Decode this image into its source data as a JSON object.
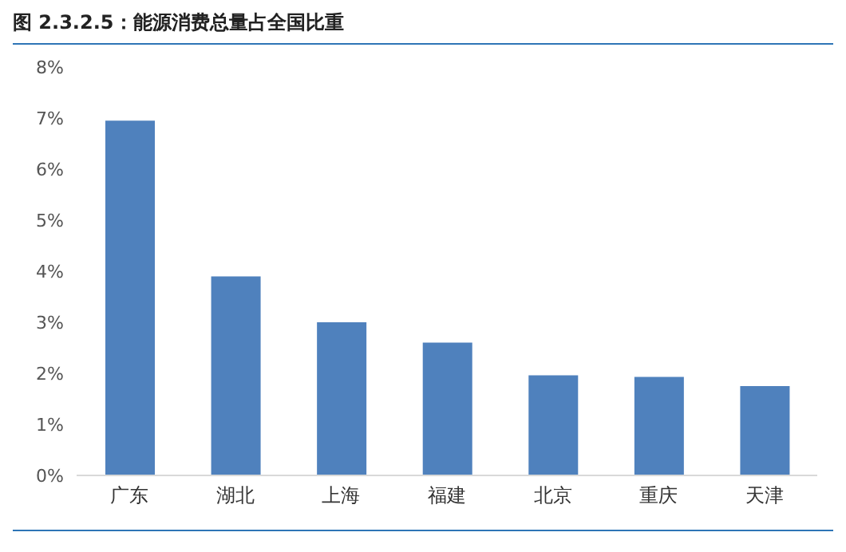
{
  "chart_data": {
    "type": "bar",
    "title": "图 2.3.2.5：能源消费总量占全国比重",
    "categories": [
      "广东",
      "湖北",
      "上海",
      "福建",
      "北京",
      "重庆",
      "天津"
    ],
    "values": [
      6.95,
      3.9,
      3.0,
      2.6,
      1.96,
      1.93,
      1.75
    ],
    "color": "#4f81bd",
    "ylim": [
      0,
      8
    ],
    "yticks": [
      {
        "value": 0,
        "label": "0%"
      },
      {
        "value": 1,
        "label": "1%"
      },
      {
        "value": 2,
        "label": "2%"
      },
      {
        "value": 3,
        "label": "3%"
      },
      {
        "value": 4,
        "label": "4%"
      },
      {
        "value": 5,
        "label": "5%"
      },
      {
        "value": 6,
        "label": "6%"
      },
      {
        "value": 7,
        "label": "7%"
      },
      {
        "value": 8,
        "label": "8%"
      }
    ],
    "grid": false,
    "legend": false
  }
}
